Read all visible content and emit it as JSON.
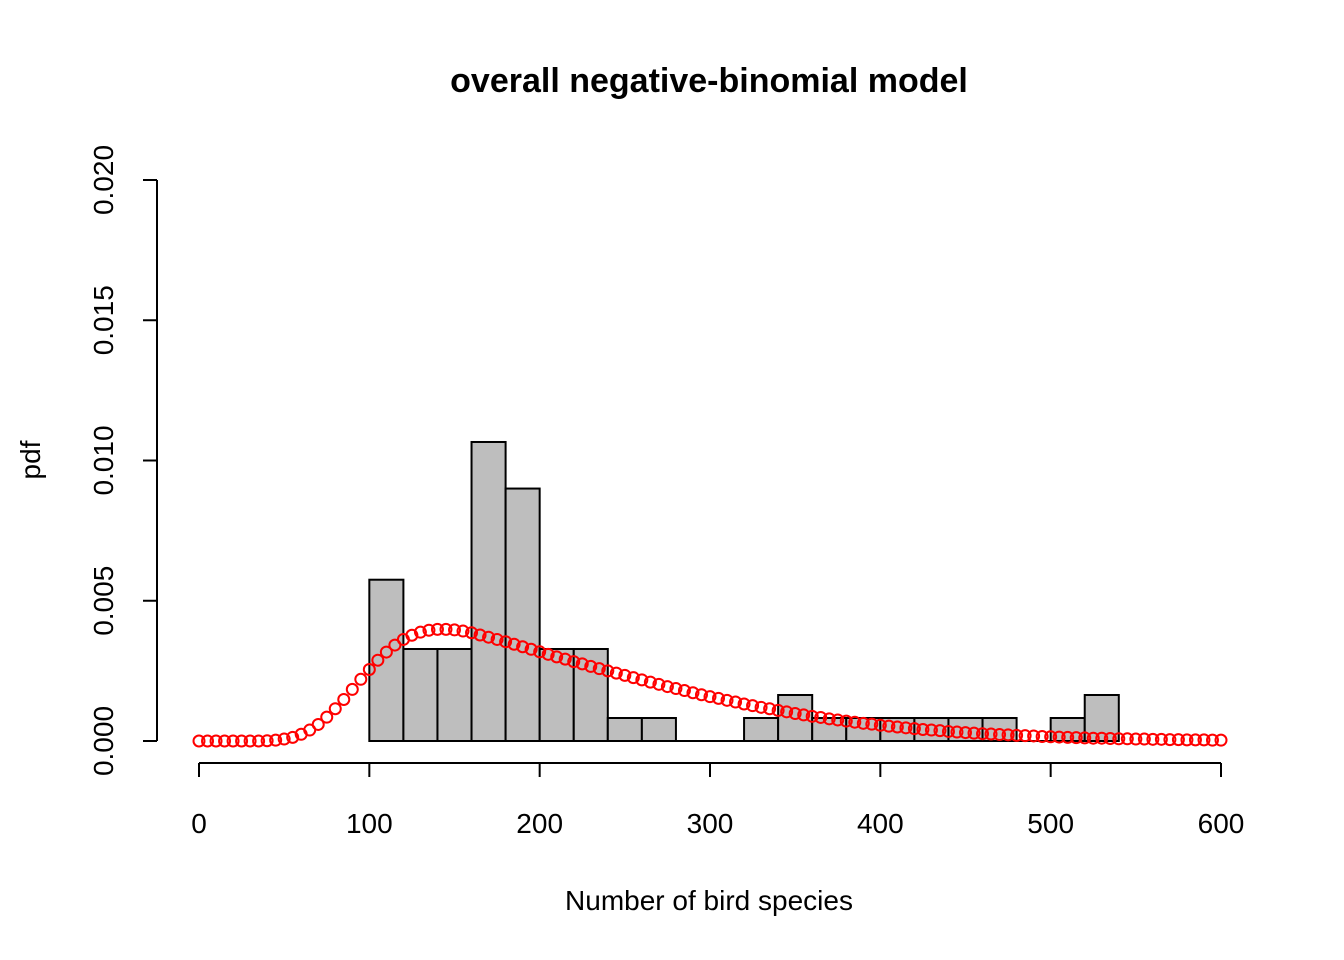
{
  "chart_data": {
    "type": "bar",
    "title": "overall negative-binomial model",
    "xlabel": "Number of bird species",
    "ylabel": "pdf",
    "xlim": [
      0,
      600
    ],
    "ylim": [
      0,
      0.02
    ],
    "x_ticks": [
      0,
      100,
      200,
      300,
      400,
      500,
      600
    ],
    "x_tick_labels": [
      "0",
      "100",
      "200",
      "300",
      "400",
      "500",
      "600"
    ],
    "y_ticks": [
      0,
      0.005,
      0.01,
      0.015,
      0.02
    ],
    "y_tick_labels": [
      "0.000",
      "0.005",
      "0.010",
      "0.015",
      "0.020"
    ],
    "grid": false,
    "histogram": {
      "bin_width": 20,
      "bin_starts": [
        100,
        120,
        140,
        160,
        180,
        200,
        220,
        240,
        260,
        280,
        300,
        320,
        340,
        360,
        380,
        400,
        420,
        440,
        460,
        480,
        500,
        520
      ],
      "density": [
        0.00575,
        0.00328,
        0.00328,
        0.01066,
        0.009,
        0.00328,
        0.00328,
        0.00082,
        0.00082,
        0,
        0,
        0.00082,
        0.00164,
        0.00082,
        0.00082,
        0.00082,
        0.00082,
        0.00082,
        0.00082,
        0,
        0.00082,
        0.00164
      ],
      "fill_color": "#bebebe"
    },
    "series": [
      {
        "type": "scatter",
        "marker": "open-circle",
        "color": "#ff0000",
        "x": [
          0,
          5,
          10,
          15,
          20,
          25,
          30,
          35,
          40,
          45,
          50,
          55,
          60,
          65,
          70,
          75,
          80,
          85,
          90,
          95,
          100,
          105,
          110,
          115,
          120,
          125,
          130,
          135,
          140,
          145,
          150,
          155,
          160,
          165,
          170,
          175,
          180,
          185,
          190,
          195,
          200,
          205,
          210,
          215,
          220,
          225,
          230,
          235,
          240,
          245,
          250,
          255,
          260,
          265,
          270,
          275,
          280,
          285,
          290,
          295,
          300,
          305,
          310,
          315,
          320,
          325,
          330,
          335,
          340,
          345,
          350,
          355,
          360,
          365,
          370,
          375,
          380,
          385,
          390,
          395,
          400,
          405,
          410,
          415,
          420,
          425,
          430,
          435,
          440,
          445,
          450,
          455,
          460,
          465,
          470,
          475,
          480,
          485,
          490,
          495,
          500,
          505,
          510,
          515,
          520,
          525,
          530,
          535,
          540,
          545,
          550,
          555,
          560,
          565,
          570,
          575,
          580,
          585,
          590,
          595,
          600
        ],
        "y": [
          0,
          0,
          0,
          0,
          0,
          0,
          0,
          0,
          1e-05,
          3e-05,
          7e-05,
          0.00013,
          0.00024,
          0.00039,
          0.00059,
          0.00085,
          0.00115,
          0.00148,
          0.00184,
          0.0022,
          0.00255,
          0.00288,
          0.00317,
          0.00342,
          0.00362,
          0.00377,
          0.00388,
          0.00395,
          0.00398,
          0.00398,
          0.00396,
          0.00392,
          0.00386,
          0.00378,
          0.0037,
          0.00362,
          0.00354,
          0.00345,
          0.00336,
          0.00327,
          0.00318,
          0.00309,
          0.003,
          0.00292,
          0.00283,
          0.00275,
          0.00266,
          0.00258,
          0.0025,
          0.00242,
          0.00234,
          0.00226,
          0.00218,
          0.0021,
          0.00202,
          0.00194,
          0.00187,
          0.0018,
          0.00172,
          0.00165,
          0.00158,
          0.00152,
          0.00145,
          0.00139,
          0.00132,
          0.00126,
          0.0012,
          0.00115,
          0.00109,
          0.00104,
          0.00098,
          0.00093,
          0.00088,
          0.00084,
          0.00079,
          0.00075,
          0.00071,
          0.00067,
          0.00063,
          0.0006,
          0.00056,
          0.00053,
          0.0005,
          0.00047,
          0.00044,
          0.00041,
          0.00039,
          0.00037,
          0.00034,
          0.00032,
          0.0003,
          0.00028,
          0.00026,
          0.00025,
          0.00023,
          0.00022,
          0.0002,
          0.00019,
          0.00018,
          0.00016,
          0.00015,
          0.00014,
          0.00013,
          0.00012,
          0.00011,
          0.0001,
          0.0001,
          9e-05,
          8e-05,
          8e-05,
          7e-05,
          7e-05,
          6e-05,
          6e-05,
          5e-05,
          5e-05,
          4e-05,
          4e-05,
          4e-05,
          3e-05,
          3e-05
        ]
      }
    ]
  }
}
